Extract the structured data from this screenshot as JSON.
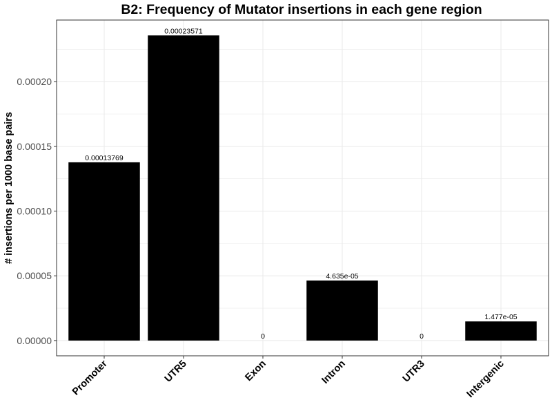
{
  "chart_data": {
    "type": "bar",
    "title": "B2: Frequency of Mutator insertions in each gene region",
    "xlabel": "",
    "ylabel": "# insertions per 1000 base pairs",
    "categories": [
      "Promoter",
      "UTR5",
      "Exon",
      "Intron",
      "UTR3",
      "Intergenic"
    ],
    "values": [
      0.00013769,
      0.00023571,
      0,
      4.635e-05,
      0,
      1.477e-05
    ],
    "data_labels": [
      "0.00013769",
      "0.00023571",
      "0",
      "4.635e-05",
      "0",
      "1.477e-05"
    ],
    "ylim": [
      -1.18e-05,
      0.0002476
    ],
    "y_ticks": [
      0,
      5e-05,
      0.0001,
      0.00015,
      0.0002
    ],
    "y_tick_labels": [
      "0.00000",
      "0.00005",
      "0.00010",
      "0.00015",
      "0.00020"
    ],
    "bar_color": "#000000",
    "grid": true,
    "grid_color": "#ebebeb",
    "panel_border_color": "#333333",
    "legend": "none"
  }
}
